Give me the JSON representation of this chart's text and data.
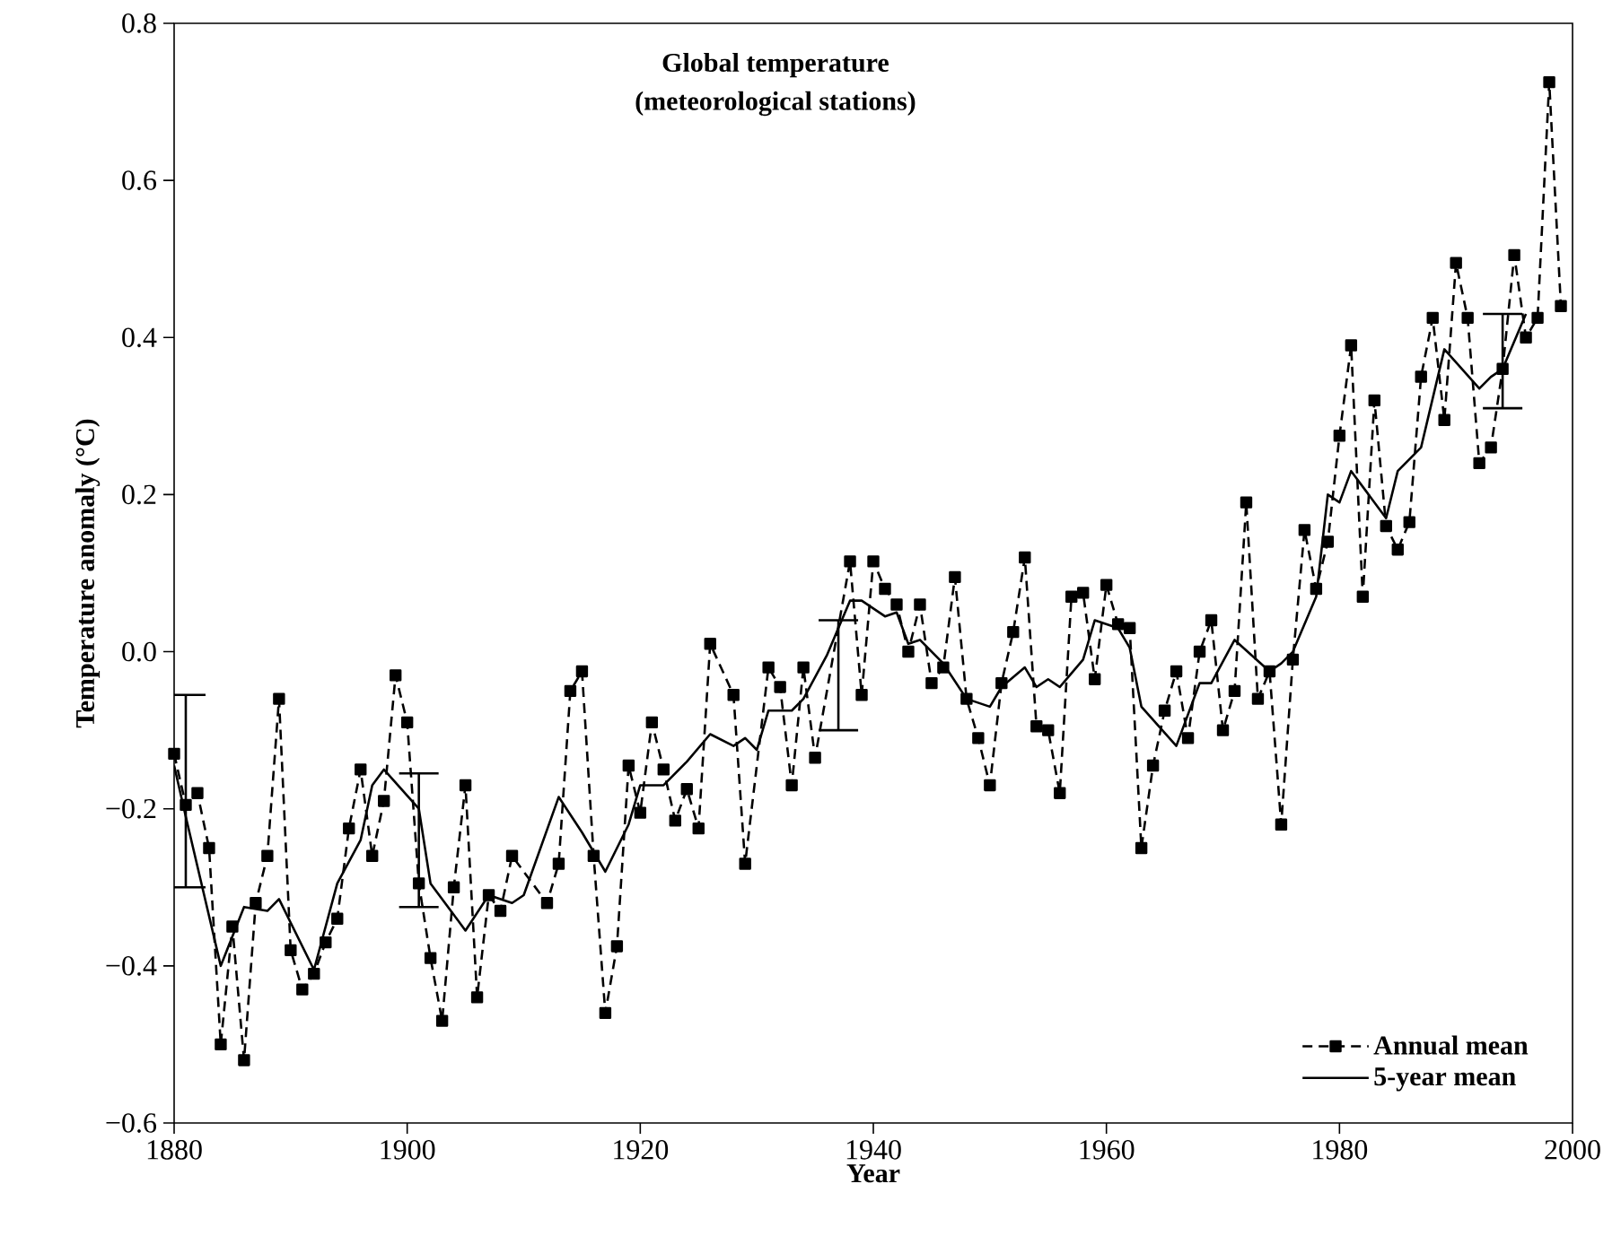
{
  "chart_data": {
    "type": "line",
    "title": "Global temperature",
    "subtitle": "(meteorological stations)",
    "xlabel": "Year",
    "ylabel": "Temperature anomaly (°C)",
    "xlim": [
      1880,
      2000
    ],
    "ylim": [
      -0.6,
      0.8
    ],
    "xticks": [
      1880,
      1900,
      1920,
      1940,
      1960,
      1980,
      2000
    ],
    "yticks": [
      {
        "value": -0.6,
        "label": "−0.6"
      },
      {
        "value": -0.4,
        "label": "−0.4"
      },
      {
        "value": -0.2,
        "label": "−0.2"
      },
      {
        "value": 0.0,
        "label": "0.0"
      },
      {
        "value": 0.2,
        "label": "0.2"
      },
      {
        "value": 0.4,
        "label": "0.4"
      },
      {
        "value": 0.6,
        "label": "0.6"
      },
      {
        "value": 0.8,
        "label": "0.8"
      }
    ],
    "legend": "bottom right",
    "series": [
      {
        "name": "Annual mean",
        "color": "#000000",
        "marker": "square",
        "line_style": "dashed",
        "x": [
          1880,
          1881,
          1882,
          1883,
          1884,
          1885,
          1886,
          1887,
          1888,
          1889,
          1890,
          1891,
          1892,
          1893,
          1894,
          1895,
          1896,
          1897,
          1898,
          1899,
          1900,
          1901,
          1902,
          1903,
          1904,
          1905,
          1906,
          1907,
          1908,
          1909,
          1912,
          1913,
          1914,
          1915,
          1916,
          1917,
          1918,
          1919,
          1920,
          1921,
          1922,
          1923,
          1924,
          1925,
          1926,
          1928,
          1929,
          1931,
          1932,
          1933,
          1934,
          1935,
          1938,
          1939,
          1940,
          1941,
          1942,
          1943,
          1944,
          1945,
          1946,
          1947,
          1948,
          1949,
          1950,
          1951,
          1952,
          1953,
          1954,
          1955,
          1956,
          1957,
          1958,
          1959,
          1960,
          1961,
          1962,
          1963,
          1964,
          1965,
          1966,
          1967,
          1968,
          1969,
          1970,
          1971,
          1972,
          1973,
          1974,
          1975,
          1976,
          1977,
          1978,
          1979,
          1980,
          1981,
          1982,
          1983,
          1984,
          1985,
          1986,
          1987,
          1988,
          1989,
          1990,
          1991,
          1992,
          1993,
          1994,
          1995,
          1996,
          1997,
          1998,
          1999
        ],
        "values": [
          -0.13,
          -0.195,
          -0.18,
          -0.25,
          -0.5,
          -0.35,
          -0.52,
          -0.32,
          -0.26,
          -0.06,
          -0.38,
          -0.43,
          -0.41,
          -0.37,
          -0.34,
          -0.225,
          -0.15,
          -0.26,
          -0.19,
          -0.03,
          -0.09,
          -0.295,
          -0.39,
          -0.47,
          -0.3,
          -0.17,
          -0.44,
          -0.31,
          -0.33,
          -0.26,
          -0.32,
          -0.27,
          -0.05,
          -0.025,
          -0.26,
          -0.46,
          -0.375,
          -0.145,
          -0.205,
          -0.09,
          -0.15,
          -0.215,
          -0.175,
          -0.225,
          0.01,
          -0.055,
          -0.27,
          -0.02,
          -0.045,
          -0.17,
          -0.02,
          -0.135,
          0.115,
          -0.055,
          0.115,
          0.08,
          0.06,
          0.0,
          0.06,
          -0.04,
          -0.02,
          0.095,
          -0.06,
          -0.11,
          -0.17,
          -0.04,
          0.025,
          0.12,
          -0.095,
          -0.1,
          -0.18,
          0.07,
          0.075,
          -0.035,
          0.085,
          0.035,
          0.03,
          -0.25,
          -0.145,
          -0.075,
          -0.025,
          -0.11,
          0.0,
          0.04,
          -0.1,
          -0.05,
          0.19,
          -0.06,
          -0.025,
          -0.22,
          -0.01,
          0.155,
          0.08,
          0.14,
          0.275,
          0.39,
          0.07,
          0.32,
          0.16,
          0.13,
          0.165,
          0.35,
          0.425,
          0.295,
          0.495,
          0.425,
          0.24,
          0.26,
          0.36,
          0.505,
          0.4,
          0.425,
          0.725,
          0.44
        ]
      },
      {
        "name": "5-year mean",
        "color": "#000000",
        "marker": "none",
        "line_style": "solid",
        "x": [
          1880,
          1881,
          1884,
          1886,
          1888,
          1889,
          1892,
          1894,
          1896,
          1897,
          1898,
          1901,
          1902,
          1905,
          1907,
          1909,
          1910,
          1913,
          1915,
          1917,
          1919,
          1920,
          1922,
          1924,
          1926,
          1928,
          1929,
          1930,
          1931,
          1933,
          1934,
          1936,
          1937,
          1938,
          1939,
          1941,
          1942,
          1943,
          1944,
          1946,
          1948,
          1950,
          1951,
          1953,
          1954,
          1955,
          1956,
          1958,
          1959,
          1961,
          1962,
          1963,
          1966,
          1968,
          1969,
          1971,
          1974,
          1975,
          1976,
          1978,
          1979,
          1980,
          1981,
          1984,
          1985,
          1987,
          1989,
          1992,
          1993,
          1994,
          1996
        ],
        "values": [
          -0.145,
          -0.21,
          -0.4,
          -0.325,
          -0.33,
          -0.315,
          -0.405,
          -0.295,
          -0.24,
          -0.17,
          -0.15,
          -0.2,
          -0.295,
          -0.355,
          -0.31,
          -0.32,
          -0.31,
          -0.185,
          -0.23,
          -0.28,
          -0.22,
          -0.17,
          -0.17,
          -0.14,
          -0.105,
          -0.12,
          -0.11,
          -0.125,
          -0.075,
          -0.075,
          -0.06,
          -0.005,
          0.03,
          0.065,
          0.065,
          0.045,
          0.05,
          0.01,
          0.015,
          -0.015,
          -0.06,
          -0.07,
          -0.045,
          -0.02,
          -0.045,
          -0.035,
          -0.045,
          -0.01,
          0.04,
          0.03,
          0.005,
          -0.07,
          -0.12,
          -0.04,
          -0.04,
          0.015,
          -0.025,
          -0.015,
          0.0,
          0.07,
          0.2,
          0.19,
          0.23,
          0.17,
          0.23,
          0.26,
          0.385,
          0.335,
          0.35,
          0.36,
          0.43
        ],
        "errors": [
          null,
          [
            -0.3,
            -0.055
          ],
          null,
          null,
          null,
          null,
          null,
          null,
          null,
          null,
          null,
          [
            -0.325,
            -0.155
          ],
          null,
          null,
          null,
          null,
          null,
          null,
          null,
          null,
          null,
          null,
          null,
          null,
          null,
          null,
          null,
          null,
          null,
          null,
          null,
          null,
          [
            -0.1,
            0.04
          ],
          null,
          null,
          null,
          null,
          null,
          null,
          null,
          null,
          null,
          null,
          null,
          null,
          null,
          null,
          null,
          null,
          null,
          null,
          null,
          null,
          null,
          null,
          null,
          null,
          null,
          null,
          null,
          null,
          null,
          null,
          null,
          null,
          null,
          null,
          null,
          null,
          [
            0.31,
            0.43
          ],
          null
        ]
      }
    ]
  }
}
